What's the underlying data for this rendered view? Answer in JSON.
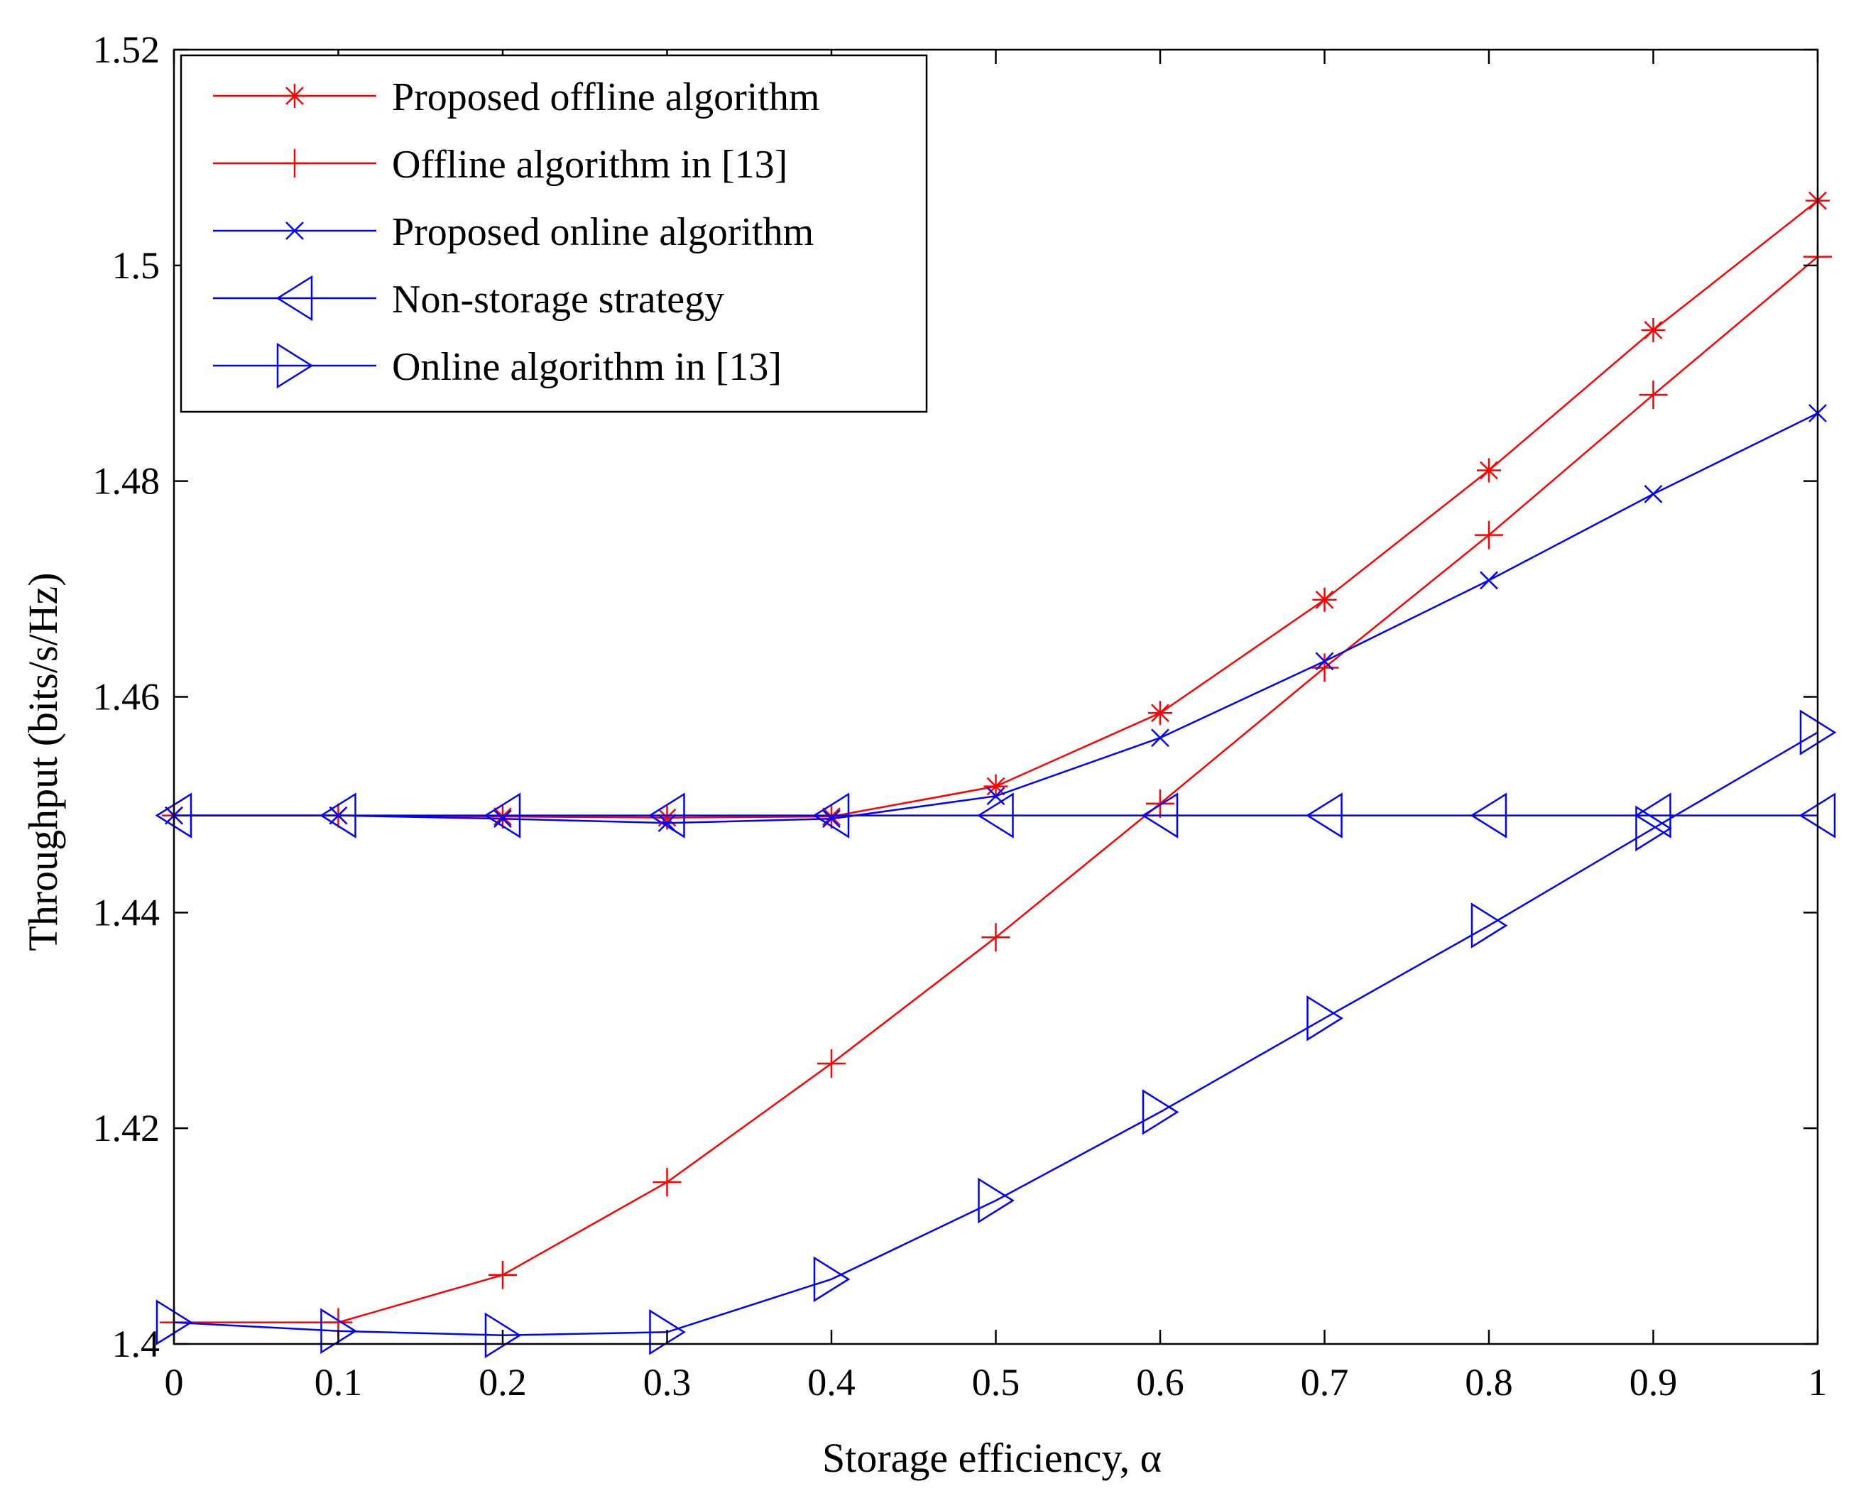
{
  "chart_data": {
    "type": "line",
    "title": "",
    "xlabel": "Storage efficiency, α",
    "ylabel": "Throughput (bits/s/Hz)",
    "xlim": [
      0,
      1
    ],
    "ylim": [
      1.4,
      1.52
    ],
    "xticks": [
      0,
      0.1,
      0.2,
      0.3,
      0.4,
      0.5,
      0.6,
      0.7,
      0.8,
      0.9,
      1
    ],
    "xtick_labels": [
      "0",
      "0.1",
      "0.2",
      "0.3",
      "0.4",
      "0.5",
      "0.6",
      "0.7",
      "0.8",
      "0.9",
      "1"
    ],
    "yticks": [
      1.4,
      1.42,
      1.44,
      1.46,
      1.48,
      1.5,
      1.52
    ],
    "ytick_labels": [
      "1.4",
      "1.42",
      "1.44",
      "1.46",
      "1.48",
      "1.5",
      "1.52"
    ],
    "grid": false,
    "legend_position": "top-left",
    "x": [
      0,
      0.1,
      0.2,
      0.3,
      0.4,
      0.5,
      0.6,
      0.7,
      0.8,
      0.9,
      1
    ],
    "series": [
      {
        "name": "Proposed offline algorithm",
        "color": "#ff0000",
        "marker": "asterisk",
        "values": [
          1.449,
          1.449,
          1.4489,
          1.4488,
          1.4489,
          1.4517,
          1.4585,
          1.469,
          1.481,
          1.494,
          1.506
        ]
      },
      {
        "name": "Offline algorithm in [13]",
        "color": "#ff0000",
        "marker": "plus",
        "values": [
          1.402,
          1.402,
          1.4064,
          1.415,
          1.426,
          1.4377,
          1.4501,
          1.4627,
          1.475,
          1.488,
          1.5008
        ]
      },
      {
        "name": "Proposed online algorithm",
        "color": "#0000ff",
        "marker": "x",
        "values": [
          1.449,
          1.449,
          1.4487,
          1.4483,
          1.4487,
          1.4508,
          1.4562,
          1.4633,
          1.4708,
          1.4788,
          1.4863
        ]
      },
      {
        "name": "Non-storage strategy",
        "color": "#0000ff",
        "marker": "triangle-left",
        "values": [
          1.449,
          1.449,
          1.449,
          1.449,
          1.449,
          1.449,
          1.449,
          1.449,
          1.449,
          1.449,
          1.449
        ]
      },
      {
        "name": "Online algorithm in [13]",
        "color": "#0000ff",
        "marker": "triangle-right",
        "values": [
          1.402,
          1.4012,
          1.4008,
          1.4011,
          1.406,
          1.4133,
          1.4215,
          1.4302,
          1.4388,
          1.4478,
          1.4567
        ]
      }
    ]
  }
}
